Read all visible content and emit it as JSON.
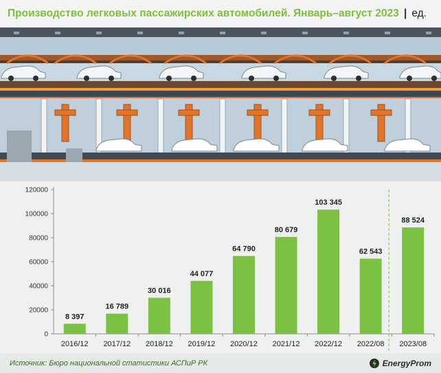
{
  "header": {
    "title": "Производство легковых пассажирских автомобилей. Январь–август 2023",
    "separator": "|",
    "unit": "ед."
  },
  "footer": {
    "source": "Источник: Бюро национальной статистики АСПиР РК",
    "brand": "EnergyProm"
  },
  "colors": {
    "bar": "#7cc242",
    "title": "#7dc03c",
    "divider": "#7cc242",
    "factory_bg": "#c5d7e3",
    "robot": "#e0742a"
  },
  "chart_data": {
    "type": "bar",
    "categories": [
      "2016/12",
      "2017/12",
      "2018/12",
      "2019/12",
      "2020/12",
      "2021/12",
      "2022/12",
      "2022/08",
      "2023/08"
    ],
    "values": [
      8397,
      16789,
      30016,
      44077,
      64790,
      80679,
      103345,
      62543,
      88524
    ],
    "value_labels": [
      "8 397",
      "16 789",
      "30 016",
      "44 077",
      "64 790",
      "80 679",
      "103 345",
      "62 543",
      "88 524"
    ],
    "y_ticks": [
      "0",
      "20000",
      "40000",
      "60000",
      "80000",
      "100000",
      "120000"
    ],
    "ylim": [
      0,
      120000
    ],
    "divider_after_index": 7,
    "grid": false,
    "legend": "none"
  }
}
